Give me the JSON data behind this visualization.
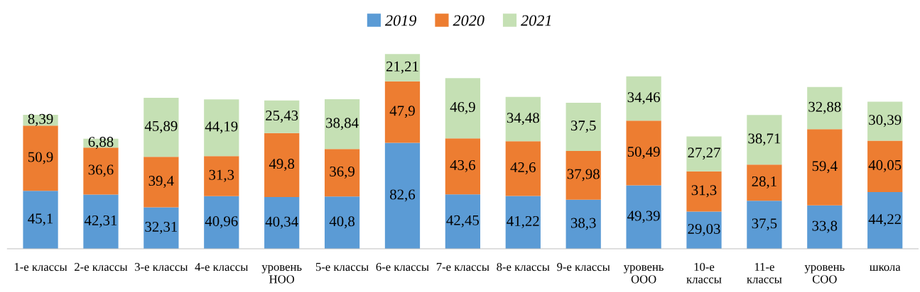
{
  "chart_data": {
    "type": "bar",
    "stacked": true,
    "tick_labels": "x",
    "legend": "top",
    "grid": false,
    "categories": [
      "1-е классы",
      "2-е классы",
      "3-е классы",
      "4-е классы",
      "уровень\nНОО",
      "5-е классы",
      "6-е классы",
      "7-е классы",
      "8-е классы",
      "9-е классы",
      "уровень\nООО",
      "10-е\nклассы",
      "11-е\nклассы",
      "уровень\nСОО",
      "школа"
    ],
    "series": [
      {
        "name": "2019",
        "color": "#5b9bd5",
        "values": [
          45.1,
          42.31,
          32.31,
          40.96,
          40.34,
          40.8,
          82.6,
          42.45,
          41.22,
          38.3,
          49.39,
          29.03,
          37.5,
          33.8,
          44.22
        ],
        "value_labels": [
          "45,1",
          "42,31",
          "32,31",
          "40,96",
          "40,34",
          "40,8",
          "82,6",
          "42,45",
          "41,22",
          "38,3",
          "49,39",
          "29,03",
          "37,5",
          "33,8",
          "44,22"
        ]
      },
      {
        "name": "2020",
        "color": "#ed7d31",
        "values": [
          50.9,
          36.6,
          39.4,
          31.3,
          49.8,
          36.9,
          47.9,
          43.6,
          42.6,
          37.98,
          50.49,
          31.3,
          28.1,
          59.4,
          40.05
        ],
        "value_labels": [
          "50,9",
          "36,6",
          "39,4",
          "31,3",
          "49,8",
          "36,9",
          "47,9",
          "43,6",
          "42,6",
          "37,98",
          "50,49",
          "31,3",
          "28,1",
          "59,4",
          "40,05"
        ]
      },
      {
        "name": "2021",
        "color": "#c5e0b4",
        "values": [
          8.39,
          6.88,
          45.89,
          44.19,
          25.43,
          38.84,
          21.21,
          46.9,
          34.48,
          37.5,
          34.46,
          27.27,
          38.71,
          32.88,
          30.39
        ],
        "value_labels": [
          "8,39",
          "6,88",
          "45,89",
          "44,19",
          "25,43",
          "38,84",
          "21,21",
          "46,9",
          "34,48",
          "37,5",
          "34,46",
          "27,27",
          "38,71",
          "32,88",
          "30,39"
        ]
      }
    ]
  }
}
